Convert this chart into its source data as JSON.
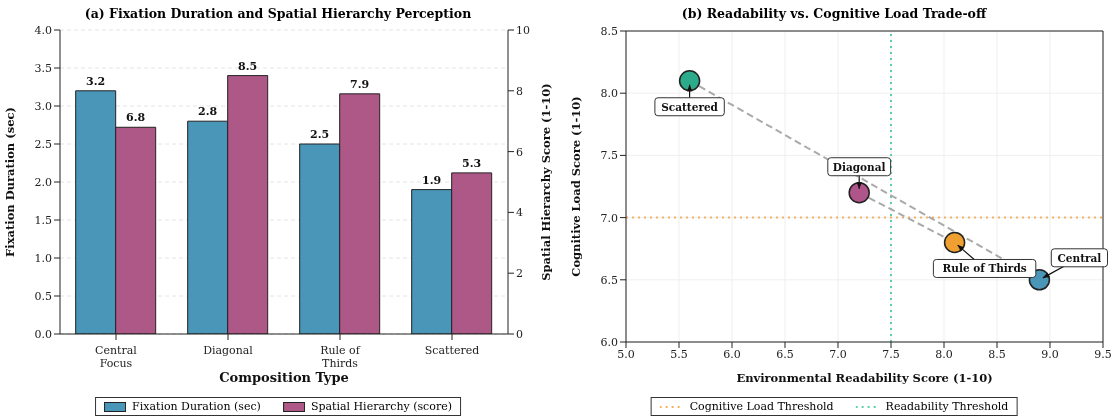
{
  "chart_data": [
    {
      "type": "bar",
      "title": "(a) Fixation Duration and Spatial Hierarchy Perception",
      "xlabel": "Composition Type",
      "ylabel": "Fixation Duration (sec)",
      "y2label": "Spatial Hierarchy Score (1-10)",
      "categories": [
        "Central Focus",
        "Diagonal",
        "Rule of Thirds",
        "Scattered"
      ],
      "series": [
        {
          "name": "Fixation Duration (sec)",
          "color": "#4a96b8",
          "values": [
            3.2,
            2.8,
            2.5,
            1.9
          ]
        },
        {
          "name": "Spatial Hierarchy (score)",
          "color": "#ad5887",
          "values": [
            6.8,
            8.5,
            7.9,
            5.3
          ],
          "axis": "y2"
        }
      ],
      "ylim": [
        0,
        4
      ],
      "yticks": [
        {
          "value": 0,
          "label": "0.0"
        },
        {
          "value": 0.5,
          "label": "0.5"
        },
        {
          "value": 1,
          "label": "1.0"
        },
        {
          "value": 1.5,
          "label": "1.5"
        },
        {
          "value": 2,
          "label": "2.0"
        },
        {
          "value": 2.5,
          "label": "2.5"
        },
        {
          "value": 3,
          "label": "3.0"
        },
        {
          "value": 3.5,
          "label": "3.5"
        },
        {
          "value": 4,
          "label": "4.0"
        }
      ],
      "y2lim": [
        0,
        10
      ],
      "y2ticks": [
        0,
        2,
        4,
        6,
        8,
        10
      ],
      "data_labels": true,
      "grid": "y",
      "legend": "bottom"
    },
    {
      "type": "scatter",
      "title": "(b) Readability vs. Cognitive Load Trade-off",
      "xlabel": "Environmental Readability Score (1-10)",
      "ylabel": "Cognitive Load Score (1-10)",
      "series": [
        {
          "type": "scatter",
          "x": [
            5.6,
            7.2,
            8.1,
            8.9
          ],
          "values": [
            8.1,
            7.2,
            6.8,
            6.5
          ],
          "colors": [
            "#2bab8a",
            "#b0558a",
            "#f0a030",
            "#4a96b8"
          ]
        },
        {
          "type": "line",
          "x": [
            5.6,
            8.9
          ],
          "values": [
            8.1,
            6.5
          ],
          "color": "#aaaaaa",
          "line_style": "dashed",
          "marker": "none"
        },
        {
          "type": "line",
          "x": [
            7.2,
            8.1
          ],
          "values": [
            7.2,
            6.8
          ],
          "color": "#aaaaaa",
          "line_style": "dashed",
          "marker": "none"
        }
      ],
      "xlim": [
        5,
        9.5
      ],
      "xticks": [
        {
          "value": 5,
          "label": "5.0"
        },
        {
          "value": 5.5,
          "label": "5.5"
        },
        {
          "value": 6,
          "label": "6.0"
        },
        {
          "value": 6.5,
          "label": "6.5"
        },
        {
          "value": 7,
          "label": "7.0"
        },
        {
          "value": 7.5,
          "label": "7.5"
        },
        {
          "value": 8,
          "label": "8.0"
        },
        {
          "value": 8.5,
          "label": "8.5"
        },
        {
          "value": 9,
          "label": "9.0"
        },
        {
          "value": 9.5,
          "label": "9.5"
        }
      ],
      "ylim": [
        6,
        8.5
      ],
      "yticks": [
        {
          "value": 6,
          "label": "6.0"
        },
        {
          "value": 6.5,
          "label": "6.5"
        },
        {
          "value": 7,
          "label": "7.0"
        },
        {
          "value": 7.5,
          "label": "7.5"
        },
        {
          "value": 8,
          "label": "8.0"
        },
        {
          "value": 8.5,
          "label": "8.5"
        }
      ],
      "ref_lines": [
        {
          "axis": "y",
          "value": 7,
          "label": "Cognitive Load Threshold",
          "color": "#f5b060",
          "line_style": "dotted"
        },
        {
          "axis": "x",
          "value": 7.5,
          "label": "Readability Threshold",
          "color": "#5ccfb0",
          "line_style": "dotted"
        }
      ],
      "annotations": [
        {
          "text": "Scattered",
          "x": 5.6,
          "y": 8.1
        },
        {
          "text": "Diagonal",
          "x": 7.2,
          "y": 7.2
        },
        {
          "text": "Rule of Thirds",
          "x": 8.1,
          "y": 6.8
        },
        {
          "text": "Central",
          "x": 8.9,
          "y": 6.5
        }
      ],
      "marker": "circle",
      "grid": true,
      "legend": "bottom"
    }
  ]
}
